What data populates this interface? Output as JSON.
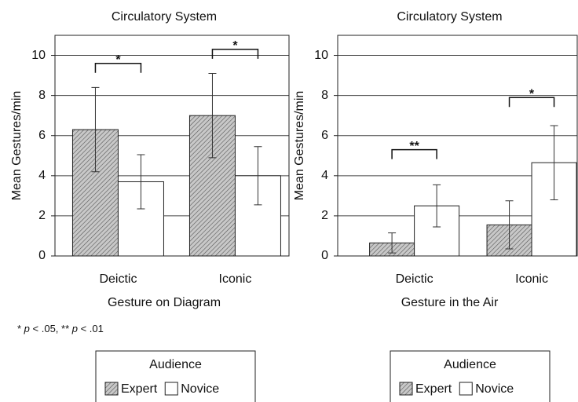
{
  "chart_data": [
    {
      "type": "bar",
      "title": "Circulatory System",
      "y_label": "Mean Gestures/min",
      "x_label": "Gesture on Diagram",
      "categories": [
        "Deictic",
        "Iconic"
      ],
      "series": [
        {
          "name": "Expert",
          "color": "#bdbdbd",
          "hatch": true,
          "values": [
            6.3,
            7.0
          ],
          "errors": [
            2.1,
            2.1
          ]
        },
        {
          "name": "Novice",
          "color": "#ffffff",
          "hatch": false,
          "values": [
            3.7,
            4.0
          ],
          "errors": [
            1.35,
            1.45
          ]
        }
      ],
      "annotations": [
        "*",
        "*"
      ],
      "annotation_y": [
        9.6,
        10.3
      ],
      "ylim": [
        0,
        11
      ],
      "yticks": [
        0,
        2,
        4,
        6,
        8,
        10
      ],
      "grid": true,
      "legend_title": "Audience"
    },
    {
      "type": "bar",
      "title": "Circulatory System",
      "y_label": "Mean Gestures/min",
      "x_label": "Gesture in the Air",
      "categories": [
        "Deictic",
        "Iconic"
      ],
      "series": [
        {
          "name": "Expert",
          "color": "#bdbdbd",
          "hatch": true,
          "values": [
            0.65,
            1.55
          ],
          "errors": [
            0.5,
            1.2
          ]
        },
        {
          "name": "Novice",
          "color": "#ffffff",
          "hatch": false,
          "values": [
            2.5,
            4.65
          ],
          "errors": [
            1.05,
            1.85
          ]
        }
      ],
      "annotations": [
        "**",
        "*"
      ],
      "annotation_y": [
        5.3,
        7.9
      ],
      "ylim": [
        0,
        11
      ],
      "yticks": [
        0,
        2,
        4,
        6,
        8,
        10
      ],
      "grid": true,
      "legend_title": "Audience"
    }
  ],
  "footnote": [
    "* ",
    "p",
    " < .05, ** ",
    "p",
    " < .01"
  ]
}
